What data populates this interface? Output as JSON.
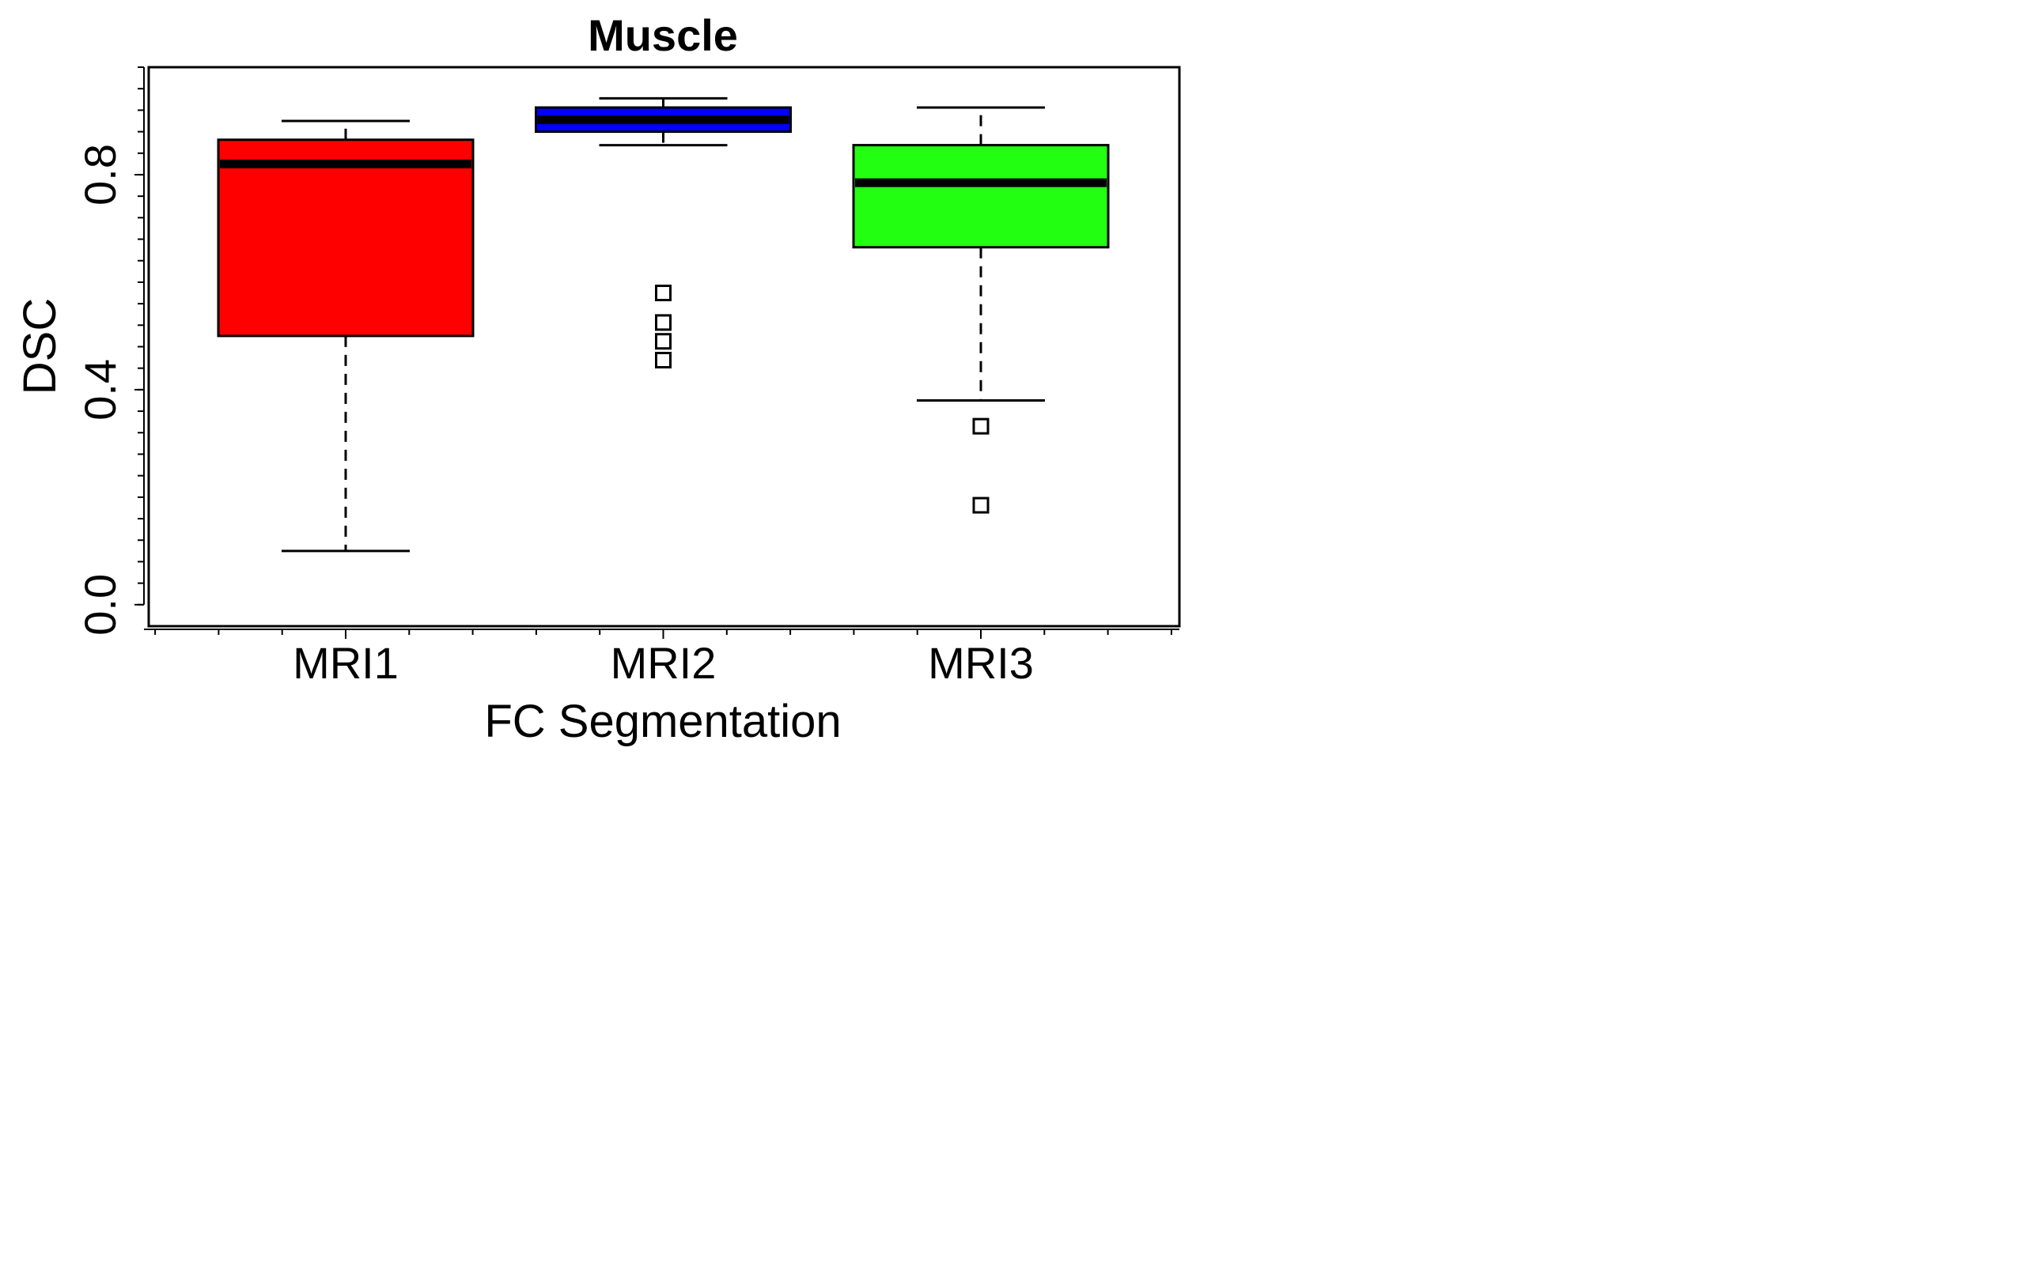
{
  "chart_data": {
    "type": "boxplot",
    "title": "Muscle",
    "xlabel": "FC Segmentation",
    "ylabel": "DSC",
    "ylim": [
      -0.04,
      1.0
    ],
    "yticks": [
      0.0,
      0.4,
      0.8
    ],
    "ytick_labels": [
      "0.0",
      "0.4",
      "0.8"
    ],
    "y_minor_step": 0.04,
    "x_minor_step": 0.2,
    "categories": [
      "MRI1",
      "MRI2",
      "MRI3"
    ],
    "boxes": [
      {
        "name": "MRI1",
        "color": "#ff0000",
        "whisker_low": 0.1,
        "q1": 0.5,
        "median": 0.82,
        "q3": 0.865,
        "whisker_high": 0.9,
        "outliers": []
      },
      {
        "name": "MRI2",
        "color": "#0000ff",
        "whisker_low": 0.855,
        "q1": 0.88,
        "median": 0.902,
        "q3": 0.925,
        "whisker_high": 0.942,
        "outliers": [
          0.58,
          0.525,
          0.49,
          0.455
        ]
      },
      {
        "name": "MRI3",
        "color": "#22ff11",
        "whisker_low": 0.38,
        "q1": 0.665,
        "median": 0.785,
        "q3": 0.855,
        "whisker_high": 0.925,
        "outliers": [
          0.332,
          0.185
        ]
      }
    ]
  }
}
